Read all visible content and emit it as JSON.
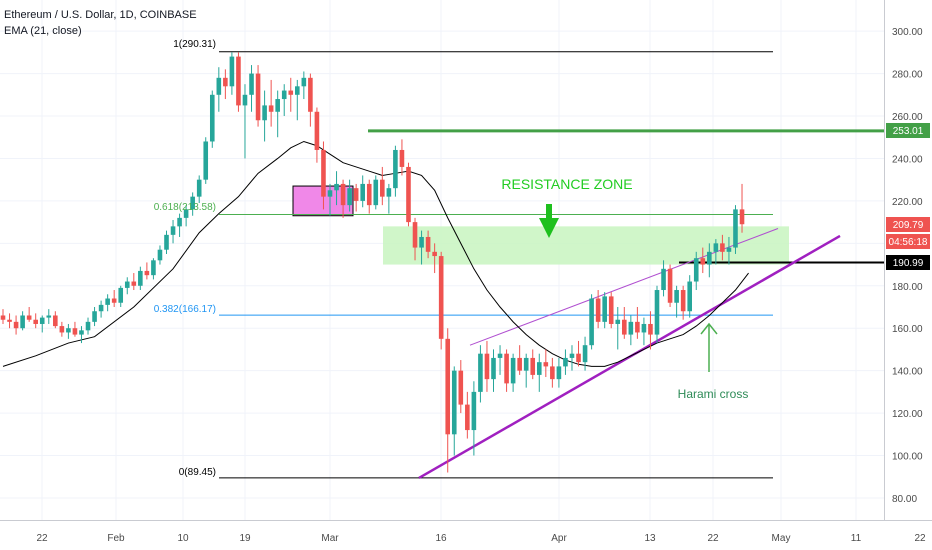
{
  "header": {
    "symbol": "Ethereum / U.S. Dollar, 1D, COINBASE",
    "indicator": "EMA (21, close)"
  },
  "colors": {
    "up": "#26a69a",
    "down": "#ef5350",
    "ema": "#000000",
    "fib": "#000000",
    "fib618": "#4caf50",
    "fib382": "#2196f3",
    "resistance_line": "#43a047",
    "resistance_zone": "#c8f5c0",
    "wedge": "#a020c0",
    "wedge_thin": "#b04fd0",
    "harami": "#4caf50",
    "box": "#f088e8"
  },
  "chart_data": {
    "type": "candlestick",
    "title": "Ethereum / U.S. Dollar, 1D, COINBASE",
    "indicator": "EMA (21, close)",
    "y_ticks": [
      "300.00",
      "280.00",
      "260.00",
      "240.00",
      "220.00",
      "200.00",
      "180.00",
      "160.00",
      "140.00",
      "120.00",
      "100.00",
      "80.00"
    ],
    "x_ticks": [
      "22",
      "Feb",
      "10",
      "19",
      "Mar",
      "16",
      "Apr",
      "13",
      "22",
      "May",
      "11",
      "22"
    ],
    "ylim": [
      76,
      308
    ],
    "price_badges": {
      "level_253": "253.01",
      "last_price": "209.79",
      "countdown": "04:56:18",
      "level_191": "190.99"
    },
    "fib_levels": {
      "top": "1(290.31)",
      "f618": "0.618(213.58)",
      "f382": "0.382(166.17)",
      "bottom": "0(89.45)"
    },
    "annotations": {
      "resistance_zone": "RESISTANCE ZONE",
      "harami": "Harami cross"
    },
    "candles": [
      [
        166,
        169,
        162,
        164
      ],
      [
        164,
        167,
        160,
        163
      ],
      [
        163,
        166,
        157,
        160
      ],
      [
        160,
        168,
        159,
        166
      ],
      [
        166,
        170,
        163,
        164
      ],
      [
        164,
        167,
        160,
        162
      ],
      [
        162,
        166,
        158,
        165
      ],
      [
        165,
        169,
        162,
        166
      ],
      [
        166,
        168,
        160,
        161
      ],
      [
        161,
        163,
        156,
        158
      ],
      [
        158,
        162,
        155,
        160
      ],
      [
        160,
        163,
        156,
        157
      ],
      [
        157,
        161,
        153,
        159
      ],
      [
        159,
        165,
        157,
        163
      ],
      [
        163,
        170,
        161,
        168
      ],
      [
        168,
        173,
        165,
        171
      ],
      [
        171,
        176,
        168,
        174
      ],
      [
        174,
        178,
        170,
        172
      ],
      [
        172,
        180,
        170,
        179
      ],
      [
        179,
        184,
        176,
        182
      ],
      [
        182,
        186,
        178,
        180
      ],
      [
        180,
        189,
        178,
        187
      ],
      [
        187,
        191,
        183,
        185
      ],
      [
        185,
        193,
        183,
        192
      ],
      [
        192,
        199,
        190,
        197
      ],
      [
        197,
        206,
        195,
        204
      ],
      [
        204,
        211,
        200,
        208
      ],
      [
        208,
        214,
        203,
        212
      ],
      [
        212,
        218,
        208,
        216
      ],
      [
        216,
        224,
        213,
        222
      ],
      [
        222,
        232,
        219,
        230
      ],
      [
        230,
        250,
        228,
        248
      ],
      [
        248,
        272,
        245,
        270
      ],
      [
        270,
        283,
        262,
        278
      ],
      [
        278,
        282,
        268,
        274
      ],
      [
        274,
        290,
        270,
        288
      ],
      [
        288,
        290,
        262,
        265
      ],
      [
        265,
        275,
        240,
        270
      ],
      [
        270,
        284,
        262,
        280
      ],
      [
        280,
        284,
        255,
        258
      ],
      [
        258,
        272,
        248,
        265
      ],
      [
        265,
        277,
        255,
        262
      ],
      [
        262,
        272,
        250,
        268
      ],
      [
        268,
        275,
        260,
        272
      ],
      [
        272,
        278,
        262,
        270
      ],
      [
        270,
        277,
        258,
        274
      ],
      [
        274,
        281,
        268,
        278
      ],
      [
        278,
        280,
        255,
        262
      ],
      [
        262,
        264,
        238,
        244
      ],
      [
        244,
        248,
        216,
        222
      ],
      [
        222,
        228,
        213,
        225
      ],
      [
        225,
        234,
        218,
        228
      ],
      [
        228,
        230,
        212,
        218
      ],
      [
        218,
        230,
        215,
        226
      ],
      [
        226,
        228,
        215,
        220
      ],
      [
        220,
        232,
        217,
        228
      ],
      [
        228,
        230,
        214,
        218
      ],
      [
        218,
        232,
        216,
        230
      ],
      [
        230,
        236,
        218,
        222
      ],
      [
        222,
        228,
        214,
        226
      ],
      [
        226,
        246,
        222,
        244
      ],
      [
        244,
        249,
        232,
        236
      ],
      [
        236,
        238,
        208,
        210
      ],
      [
        210,
        212,
        192,
        198
      ],
      [
        198,
        206,
        190,
        203
      ],
      [
        203,
        206,
        193,
        196
      ],
      [
        196,
        200,
        186,
        194
      ],
      [
        194,
        196,
        150,
        155
      ],
      [
        155,
        160,
        92,
        110
      ],
      [
        110,
        142,
        100,
        140
      ],
      [
        140,
        145,
        120,
        124
      ],
      [
        124,
        130,
        108,
        112
      ],
      [
        112,
        135,
        100,
        130
      ],
      [
        130,
        152,
        125,
        148
      ],
      [
        148,
        154,
        130,
        136
      ],
      [
        136,
        150,
        130,
        146
      ],
      [
        146,
        152,
        138,
        148
      ],
      [
        148,
        150,
        130,
        134
      ],
      [
        134,
        148,
        130,
        146
      ],
      [
        146,
        152,
        138,
        140
      ],
      [
        140,
        148,
        132,
        146
      ],
      [
        146,
        150,
        136,
        138
      ],
      [
        138,
        148,
        130,
        144
      ],
      [
        144,
        150,
        137,
        142
      ],
      [
        142,
        146,
        132,
        136
      ],
      [
        136,
        146,
        132,
        142
      ],
      [
        142,
        150,
        138,
        146
      ],
      [
        146,
        152,
        140,
        148
      ],
      [
        148,
        154,
        142,
        144
      ],
      [
        144,
        156,
        140,
        152
      ],
      [
        152,
        176,
        150,
        174
      ],
      [
        174,
        178,
        160,
        163
      ],
      [
        163,
        177,
        160,
        175
      ],
      [
        175,
        177,
        160,
        162
      ],
      [
        162,
        170,
        150,
        164
      ],
      [
        164,
        170,
        155,
        157
      ],
      [
        157,
        166,
        152,
        163
      ],
      [
        163,
        170,
        155,
        158
      ],
      [
        158,
        165,
        152,
        162
      ],
      [
        162,
        168,
        150,
        157
      ],
      [
        157,
        180,
        153,
        178
      ],
      [
        178,
        192,
        175,
        188
      ],
      [
        188,
        190,
        170,
        172
      ],
      [
        172,
        180,
        165,
        178
      ],
      [
        178,
        180,
        164,
        168
      ],
      [
        168,
        185,
        165,
        182
      ],
      [
        182,
        196,
        178,
        193
      ],
      [
        193,
        198,
        186,
        190
      ],
      [
        190,
        200,
        184,
        196
      ],
      [
        196,
        202,
        190,
        200
      ],
      [
        200,
        204,
        192,
        196
      ],
      [
        196,
        203,
        190,
        198
      ],
      [
        198,
        218,
        195,
        216
      ],
      [
        216,
        228,
        205,
        209
      ]
    ],
    "ema": [
      [
        0,
        142
      ],
      [
        5,
        147
      ],
      [
        10,
        153
      ],
      [
        14,
        156
      ],
      [
        20,
        170
      ],
      [
        26,
        188
      ],
      [
        30,
        205
      ],
      [
        33,
        214
      ],
      [
        36,
        222
      ],
      [
        39,
        233
      ],
      [
        42,
        240
      ],
      [
        44,
        245
      ],
      [
        46,
        248
      ],
      [
        48,
        246
      ],
      [
        50,
        242
      ],
      [
        52,
        238
      ],
      [
        54,
        236
      ],
      [
        56,
        234
      ],
      [
        58,
        232
      ],
      [
        60,
        233
      ],
      [
        62,
        234
      ],
      [
        64,
        232
      ],
      [
        66,
        225
      ],
      [
        68,
        212
      ],
      [
        70,
        200
      ],
      [
        72,
        188
      ],
      [
        74,
        178
      ],
      [
        76,
        170
      ],
      [
        78,
        163
      ],
      [
        80,
        157
      ],
      [
        82,
        152
      ],
      [
        84,
        148
      ],
      [
        86,
        145
      ],
      [
        88,
        143
      ],
      [
        90,
        142
      ],
      [
        92,
        142
      ],
      [
        94,
        144
      ],
      [
        96,
        147
      ],
      [
        98,
        150
      ],
      [
        100,
        153
      ],
      [
        102,
        155
      ],
      [
        104,
        157
      ],
      [
        106,
        161
      ],
      [
        108,
        166
      ],
      [
        110,
        172
      ],
      [
        112,
        178
      ],
      [
        113,
        182
      ],
      [
        114,
        186
      ]
    ]
  }
}
